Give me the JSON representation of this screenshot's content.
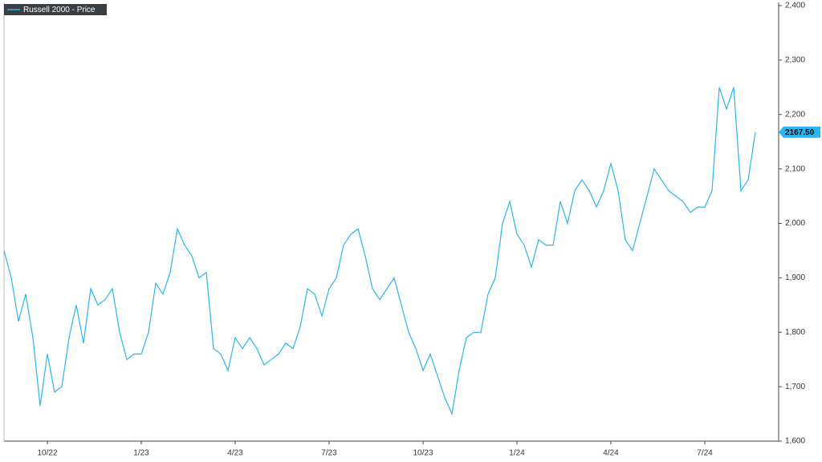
{
  "chart_data": {
    "type": "line",
    "legend_label": "Russell 2000 - Price",
    "legend_position": "top-left",
    "y_axis_side": "right",
    "categories": [
      null,
      null,
      null,
      null,
      null,
      null,
      "10/22",
      null,
      null,
      null,
      null,
      null,
      null,
      null,
      null,
      null,
      null,
      null,
      null,
      "1/23",
      null,
      null,
      null,
      null,
      null,
      null,
      null,
      null,
      null,
      null,
      null,
      null,
      "4/23",
      null,
      null,
      null,
      null,
      null,
      null,
      null,
      null,
      null,
      null,
      null,
      null,
      "7/23",
      null,
      null,
      null,
      null,
      null,
      null,
      null,
      null,
      null,
      null,
      null,
      null,
      "10/23",
      null,
      null,
      null,
      null,
      null,
      null,
      null,
      null,
      null,
      null,
      null,
      null,
      "1/24",
      null,
      null,
      null,
      null,
      null,
      null,
      null,
      null,
      null,
      null,
      null,
      null,
      "4/24",
      null,
      null,
      null,
      null,
      null,
      null,
      null,
      null,
      null,
      null,
      null,
      null,
      "7/24",
      null,
      null,
      null,
      null,
      null,
      null,
      null
    ],
    "series": [
      {
        "name": "Russell 2000 - Price",
        "color": "#29b6f0",
        "values": [
          1950,
          1900,
          1820,
          1870,
          1790,
          1665,
          1760,
          1690,
          1700,
          1790,
          1850,
          1780,
          1880,
          1850,
          1860,
          1880,
          1800,
          1750,
          1760,
          1760,
          1800,
          1890,
          1870,
          1910,
          1990,
          1960,
          1940,
          1900,
          1910,
          1770,
          1760,
          1730,
          1790,
          1770,
          1790,
          1770,
          1740,
          1750,
          1760,
          1780,
          1770,
          1810,
          1880,
          1870,
          1830,
          1880,
          1900,
          1960,
          1980,
          1990,
          1940,
          1880,
          1860,
          1880,
          1900,
          1850,
          1800,
          1770,
          1730,
          1760,
          1720,
          1680,
          1650,
          1730,
          1790,
          1800,
          1800,
          1870,
          1900,
          2000,
          2040,
          1980,
          1960,
          1920,
          1970,
          1960,
          1960,
          2040,
          2000,
          2060,
          2080,
          2060,
          2030,
          2060,
          2110,
          2060,
          1970,
          1950,
          2000,
          2050,
          2100,
          2080,
          2060,
          2050,
          2040,
          2020,
          2030,
          2030,
          2060,
          2250,
          2210,
          2250,
          2060,
          2080,
          2167.5
        ],
        "value_labels": [
          null,
          null,
          null,
          null,
          null,
          null,
          null,
          null,
          null,
          null,
          null,
          null,
          null,
          null,
          null,
          null,
          null,
          null,
          null,
          null,
          null,
          null,
          null,
          null,
          null,
          null,
          null,
          null,
          null,
          null,
          null,
          null,
          null,
          null,
          null,
          null,
          null,
          null,
          null,
          null,
          null,
          null,
          null,
          null,
          null,
          null,
          null,
          null,
          null,
          null,
          null,
          null,
          null,
          null,
          null,
          null,
          null,
          null,
          null,
          null,
          null,
          null,
          null,
          null,
          null,
          null,
          null,
          null,
          null,
          null,
          null,
          null,
          null,
          null,
          null,
          null,
          null,
          null,
          null,
          null,
          null,
          null,
          null,
          null,
          null,
          null,
          null,
          null,
          null,
          null,
          null,
          null,
          null,
          null,
          null,
          null,
          null,
          null,
          null,
          null,
          null,
          null,
          null,
          null,
          "2167.50"
        ]
      }
    ],
    "ylim": [
      1600,
      2400
    ],
    "yticks": [
      {
        "value": 1600,
        "label": "1,600"
      },
      {
        "value": 1700,
        "label": "1,700"
      },
      {
        "value": 1800,
        "label": "1,800"
      },
      {
        "value": 1900,
        "label": "1,900"
      },
      {
        "value": 2000,
        "label": "2,000"
      },
      {
        "value": 2100,
        "label": "2,100"
      },
      {
        "value": 2200,
        "label": "2,200"
      },
      {
        "value": 2300,
        "label": "2,300"
      },
      {
        "value": 2400,
        "label": "2,400"
      }
    ],
    "grid": false
  }
}
